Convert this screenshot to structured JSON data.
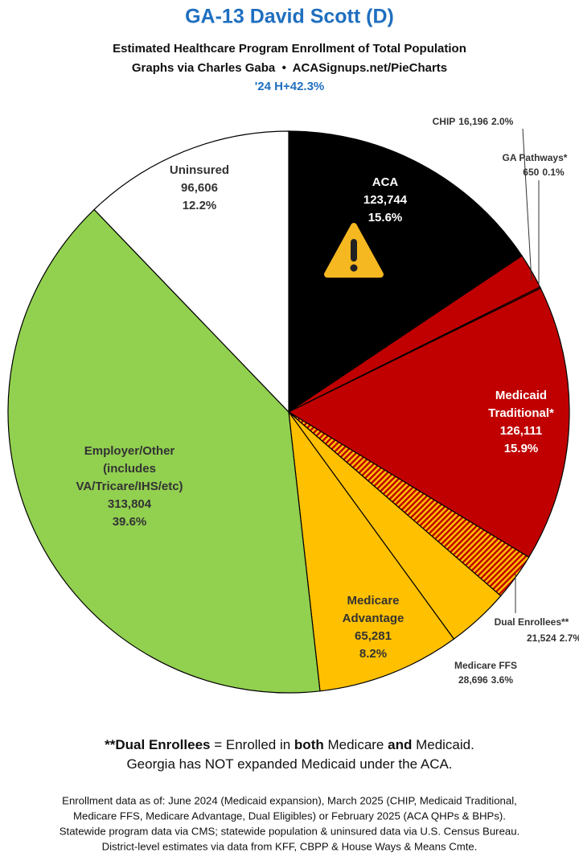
{
  "chart_data": {
    "type": "pie",
    "title": "GA-13 David Scott (D)",
    "subtitle": [
      "Estimated Healthcare Program Enrollment of Total Population",
      "Graphs via Charles Gaba  •  ACASignups.net/PieCharts",
      "'24 H+42.3%"
    ],
    "categories": [
      [
        "ACA"
      ],
      [
        "CHIP"
      ],
      [
        "GA Pathways*"
      ],
      [
        "Medicaid",
        "Traditional*"
      ],
      [
        "Dual Enrollees**"
      ],
      [
        "Medicare FFS"
      ],
      [
        "Medicare",
        "Advantage"
      ],
      [
        "Employer/Other",
        "(includes",
        "VA/Tricare/IHS/etc)"
      ],
      [
        "Uninsured"
      ]
    ],
    "values": [
      123744,
      16196,
      650,
      126111,
      21524,
      28696,
      65281,
      313804,
      96606
    ],
    "value_labels": [
      "123,744",
      "16,196",
      "650",
      "126,111",
      "21,524",
      "28,696",
      "65,281",
      "313,804",
      "96,606"
    ],
    "percent_labels": [
      "15.6%",
      "2.0%",
      "0.1%",
      "15.9%",
      "2.7%",
      "3.6%",
      "8.2%",
      "39.6%",
      "12.2%"
    ],
    "colors": [
      "#000000",
      "#c00000",
      "#c00000",
      "#c00000",
      "#ffc000",
      "#ffc000",
      "#ffc000",
      "#92d050",
      "#ffffff"
    ],
    "hatch": [
      false,
      false,
      false,
      false,
      true,
      false,
      false,
      false,
      false
    ],
    "hatch_color": "#c00000",
    "notes": [
      [
        {
          "text": "**Dual Enrollees",
          "bold": true
        },
        {
          "text": " = Enrolled in ",
          "bold": false
        },
        {
          "text": "both",
          "bold": true
        },
        {
          "text": " Medicare ",
          "bold": false
        },
        {
          "text": "and",
          "bold": true
        },
        {
          "text": " Medicaid.",
          "bold": false
        }
      ],
      [
        {
          "text": "Georgia has NOT expanded Medicaid under the ACA.",
          "bold": false
        }
      ]
    ],
    "sources": [
      "Enrollment data as of: June 2024 (Medicaid expansion), March 2025 (CHIP, Medicaid Traditional,",
      "Medicare FFS, Medicare Advantage, Dual Eligibles) or February 2025 (ACA QHPs & BHPs).",
      "Statewide program data via CMS; statewide population & uninsured data via U.S. Census Bureau.",
      "District-level estimates via data from KFF, CBPP & House Ways & Means Cmte."
    ]
  }
}
